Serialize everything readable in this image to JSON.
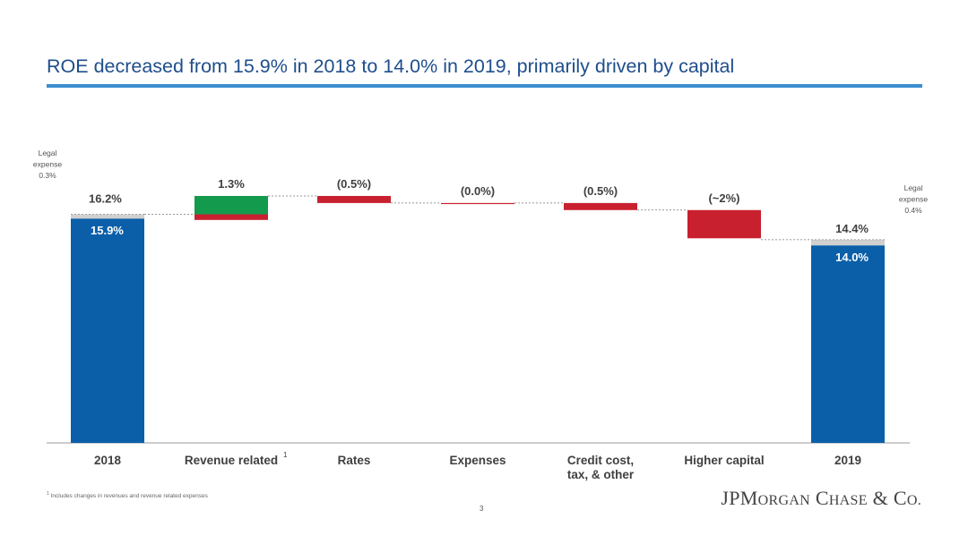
{
  "title": "ROE decreased from 15.9% in 2018 to 14.0% in 2019, primarily driven by capital",
  "colors": {
    "accent_line": "#3b8fd1",
    "title": "#1f4e8c",
    "total_bar": "#0a5fa8",
    "increase": "#149a4c",
    "decrease": "#c8202f",
    "legal_expense": "#d0d0d0"
  },
  "chart_data": {
    "type": "bar",
    "subtype": "waterfall",
    "categories": [
      "2018",
      "Revenue related",
      "Rates",
      "Expenses",
      "Credit cost, tax, & other",
      "Higher capital",
      "2019"
    ],
    "category_labels": [
      [
        "2018"
      ],
      [
        "Revenue related"
      ],
      [
        "Rates"
      ],
      [
        "Expenses"
      ],
      [
        "Credit cost,",
        "tax, & other"
      ],
      [
        "Higher capital"
      ],
      [
        "2019"
      ]
    ],
    "category_superscripts": [
      "",
      "1",
      "",
      "",
      "",
      "",
      ""
    ],
    "start": {
      "category": "2018",
      "reported_value": 15.9,
      "reported_label": "15.9%",
      "legal_expense": 0.3,
      "adjusted_value": 16.2,
      "adjusted_label": "16.2%",
      "legal_expense_label": [
        "Legal",
        "expense",
        "0.3%"
      ]
    },
    "steps": [
      {
        "category": "Revenue related",
        "label": "1.3%",
        "value": 1.3,
        "gross_increase": 1.7,
        "gross_decrease": 0.4
      },
      {
        "category": "Rates",
        "label": "(0.5%)",
        "value": -0.5
      },
      {
        "category": "Expenses",
        "label": "(0.0%)",
        "value": 0.0
      },
      {
        "category": "Credit cost, tax, & other",
        "label": "(0.5%)",
        "value": -0.5
      },
      {
        "category": "Higher capital",
        "label": "(~2%)",
        "value": -2.0
      }
    ],
    "end": {
      "category": "2019",
      "reported_value": 14.0,
      "reported_label": "14.0%",
      "legal_expense": 0.4,
      "adjusted_value": 14.4,
      "adjusted_label": "14.4%",
      "legal_expense_label": [
        "Legal",
        "expense",
        "0.4%"
      ]
    },
    "ylim": [
      0,
      22.7
    ],
    "grid": false,
    "legend": "none"
  },
  "footnote": {
    "marker": "1",
    "text": "Includes changes in revenues and revenue related expenses"
  },
  "page_number": "3",
  "logo_text": "JPMORGAN CHASE & CO."
}
